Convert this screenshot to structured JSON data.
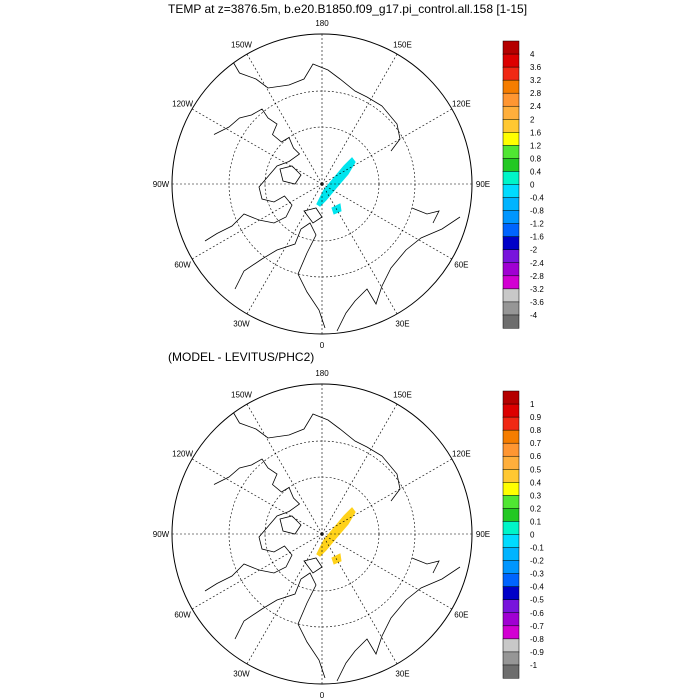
{
  "title_top": "TEMP at z=3876.5m, b.e20.B1850.f09_g17.pi_control.all.158 [1-15]",
  "title_bottom": "(MODEL - LEVITUS/PHC2)",
  "lon_labels": [
    "180",
    "150E",
    "120E",
    "90E",
    "60E",
    "30E",
    "0",
    "30W",
    "60W",
    "90W",
    "120W",
    "150W"
  ],
  "maps": [
    {
      "id": "top",
      "patch_color": "#00e5ee",
      "colorbar": {
        "labels": [
          "4",
          "3.6",
          "3.2",
          "2.8",
          "2.4",
          "2",
          "1.6",
          "1.2",
          "0.8",
          "0.4",
          "0",
          "-0.4",
          "-0.8",
          "-1.2",
          "-1.6",
          "-2",
          "-2.4",
          "-2.8",
          "-3.2",
          "-3.6",
          "-4"
        ]
      }
    },
    {
      "id": "bottom",
      "patch_color": "#ffd21a",
      "colorbar": {
        "labels": [
          "1",
          "0.9",
          "0.8",
          "0.7",
          "0.6",
          "0.5",
          "0.4",
          "0.3",
          "0.2",
          "0.1",
          "0",
          "-0.1",
          "-0.2",
          "-0.3",
          "-0.4",
          "-0.5",
          "-0.6",
          "-0.7",
          "-0.8",
          "-0.9",
          "-1"
        ]
      }
    }
  ],
  "colorbar_colors": [
    "#b40000",
    "#dc0000",
    "#f02814",
    "#ff4b1e",
    "#f57d00",
    "#ff9632",
    "#ffaf3c",
    "#ffc832",
    "#ffe61e",
    "#ffff00",
    "#50e632",
    "#23c823",
    "#00f5c8",
    "#00f5f5",
    "#00dcff",
    "#00b4ff",
    "#0096ff",
    "#0064ff",
    "#0000ff",
    "#0000c8",
    "#7814dc",
    "#a000d2",
    "#d200d2",
    "#dcdcdc",
    "#c8c8c8",
    "#969696",
    "#6e6e6e"
  ]
}
